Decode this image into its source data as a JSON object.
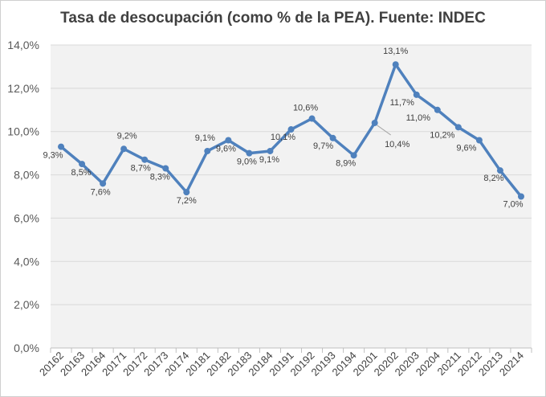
{
  "chart_data": {
    "type": "line",
    "title": "Tasa de desocupación (como % de la PEA). Fuente: INDEC",
    "xlabel": "",
    "ylabel": "",
    "ylim": [
      0,
      14
    ],
    "y_ticks": [
      "0,0%",
      "2,0%",
      "4,0%",
      "6,0%",
      "8,0%",
      "10,0%",
      "12,0%",
      "14,0%"
    ],
    "grid": true,
    "legend": "none",
    "line_color": "#4f81bd",
    "plot_background": "#f2f2f2",
    "categories": [
      "20162",
      "20163",
      "20164",
      "20171",
      "20172",
      "20173",
      "20174",
      "20181",
      "20182",
      "20183",
      "20184",
      "20191",
      "20192",
      "20193",
      "20194",
      "20201",
      "20202",
      "20203",
      "20204",
      "20211",
      "20212",
      "20213",
      "20214"
    ],
    "values": [
      9.3,
      8.5,
      7.6,
      9.2,
      8.7,
      8.3,
      7.2,
      9.1,
      9.6,
      9.0,
      9.1,
      10.1,
      10.6,
      9.7,
      8.9,
      10.4,
      13.1,
      11.7,
      11.0,
      10.2,
      9.6,
      8.2,
      7.0
    ],
    "data_labels": [
      "9,3%",
      "8,5%",
      "7,6%",
      "9,2%",
      "8,7%",
      "8,3%",
      "7,2%",
      "9,1%",
      "9,6%",
      "9,0%",
      "9,1%",
      "10,1%",
      "10,6%",
      "9,7%",
      "8,9%",
      "10,4%",
      "13,1%",
      "11,7%",
      "11,0%",
      "10,2%",
      "9,6%",
      "8,2%",
      "7,0%"
    ]
  }
}
